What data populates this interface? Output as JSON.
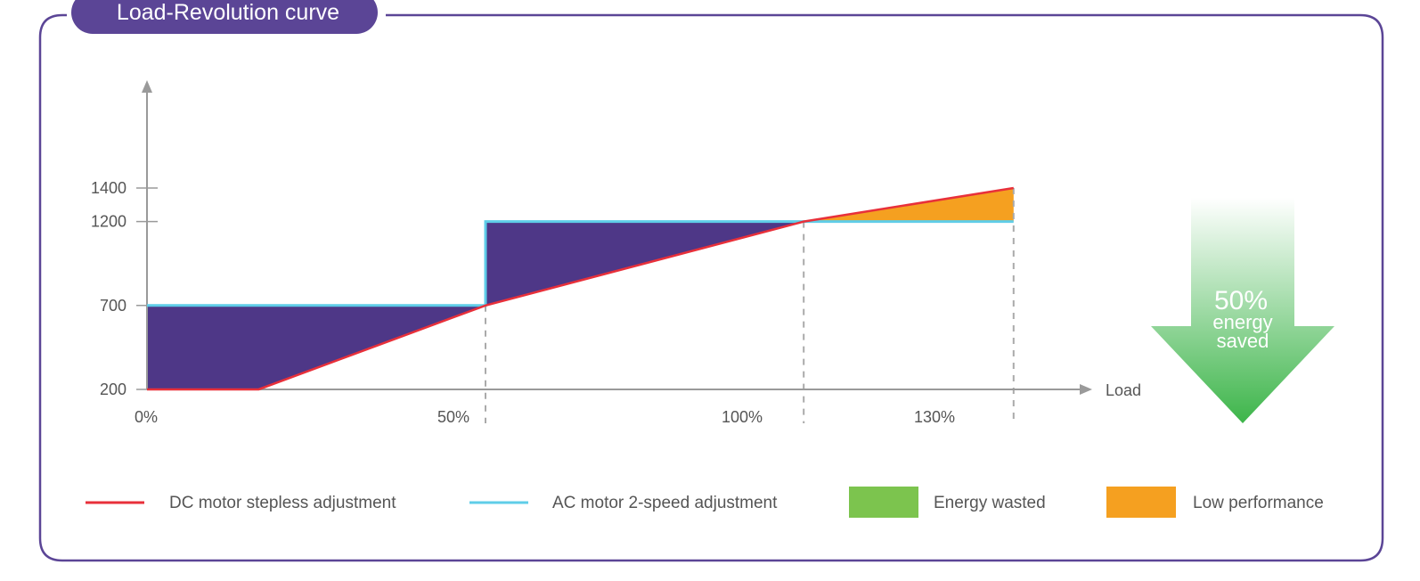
{
  "colors": {
    "frame": "#5b4596",
    "dc_line": "#e8303a",
    "ac_line": "#5fcde8",
    "wasted_fill": "#4e3787",
    "low_perf_fill": "#f5a020",
    "energy_wasted_swatch": "#7cc44e",
    "low_performance_swatch": "#f5a020",
    "axis": "#9a9a9a",
    "arrow_top": "#ffffff",
    "arrow_bottom": "#3db54a"
  },
  "arrow_badge": {
    "percent": "50%",
    "line1": "energy",
    "line2": "saved",
    "icon": "down-arrow-icon"
  },
  "chart_data": {
    "type": "line",
    "title": "Load-Revolution curve",
    "xlabel": "Load",
    "ylabel": "",
    "x_ticks": [
      {
        "label": "0%",
        "value": 0
      },
      {
        "label": "50%",
        "value": 50
      },
      {
        "label": "100%",
        "value": 100
      },
      {
        "label": "130%",
        "value": 130
      }
    ],
    "y_ticks": [
      200,
      700,
      1200,
      1400
    ],
    "xlim": [
      0,
      150
    ],
    "ylim": [
      0,
      1800
    ],
    "series": [
      {
        "name": "DC motor stepless adjustment",
        "color": "#e8303a",
        "x": [
          0,
          16.5,
          50,
          97,
          128
        ],
        "y": [
          200,
          200,
          700,
          1200,
          1400
        ]
      },
      {
        "name": "AC motor 2-speed adjustment",
        "color": "#5fcde8",
        "x": [
          0,
          50,
          50,
          128
        ],
        "y": [
          700,
          700,
          1200,
          1200
        ]
      }
    ],
    "regions": [
      {
        "name": "Energy wasted",
        "color": "#4e3787",
        "x_range": [
          0,
          97
        ]
      },
      {
        "name": "Low performance",
        "color": "#f5a020",
        "x_range": [
          97,
          128
        ]
      }
    ],
    "reference_lines_x": [
      50,
      97,
      128
    ],
    "legend": {
      "placement": "bottom",
      "items": [
        {
          "label": "DC motor stepless adjustment",
          "kind": "line",
          "color": "#e8303a"
        },
        {
          "label": "AC motor 2-speed adjustment",
          "kind": "line",
          "color": "#5fcde8"
        },
        {
          "label": "Energy wasted",
          "kind": "swatch",
          "color": "#7cc44e"
        },
        {
          "label": "Low performance",
          "kind": "swatch",
          "color": "#f5a020"
        }
      ]
    }
  }
}
